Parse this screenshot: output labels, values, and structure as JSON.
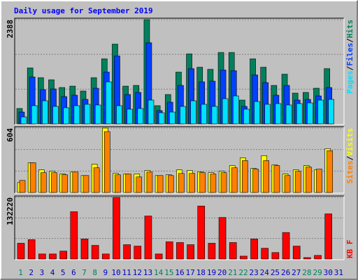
{
  "title": "Daily usage for September 2019",
  "legend_separator": "/",
  "chart_data": [
    {
      "type": "bar",
      "ylim": [
        0,
        2388
      ],
      "yticks": [
        2388
      ],
      "series": [
        {
          "name": "Hits",
          "color": "#00805c",
          "values": [
            353,
            1282,
            1058,
            1010,
            833,
            865,
            753,
            1058,
            1490,
            1827,
            865,
            881,
            2388,
            417,
            673,
            1186,
            1603,
            1298,
            1250,
            1635,
            1635,
            545,
            1490,
            1298,
            881,
            1138,
            705,
            721,
            817,
            1266,
            0
          ]
        },
        {
          "name": "Files",
          "color": "#0040ff",
          "values": [
            272,
            1074,
            785,
            801,
            625,
            657,
            561,
            817,
            1186,
            1555,
            673,
            721,
            1859,
            305,
            497,
            881,
            1266,
            962,
            978,
            1234,
            1218,
            401,
            1122,
            946,
            657,
            881,
            545,
            561,
            641,
            833,
            0
          ]
        },
        {
          "name": "Pages",
          "color": "#00e0ff",
          "values": [
            160,
            417,
            529,
            401,
            369,
            417,
            449,
            433,
            962,
            417,
            337,
            353,
            545,
            256,
            272,
            401,
            529,
            449,
            401,
            577,
            641,
            337,
            513,
            449,
            465,
            433,
            465,
            481,
            545,
            561,
            0
          ]
        }
      ]
    },
    {
      "type": "bar",
      "ylim": [
        0,
        604
      ],
      "yticks": [
        604
      ],
      "series": [
        {
          "name": "Visits",
          "color": "#ffff00",
          "values": [
            93,
            279,
            212,
            199,
            173,
            192,
            159,
            265,
            604,
            179,
            173,
            173,
            206,
            159,
            166,
            212,
            206,
            192,
            186,
            199,
            252,
            325,
            226,
            345,
            259,
            173,
            212,
            252,
            212,
            411,
            0
          ]
        },
        {
          "name": "Sites",
          "color": "#ff8000",
          "values": [
            113,
            279,
            186,
            186,
            166,
            192,
            159,
            232,
            571,
            166,
            173,
            146,
            192,
            159,
            159,
            179,
            179,
            186,
            173,
            186,
            232,
            299,
            219,
            299,
            252,
            159,
            199,
            239,
            219,
            392,
            0
          ]
        }
      ]
    },
    {
      "type": "bar",
      "ylim": [
        0,
        132220
      ],
      "yticks": [
        132220
      ],
      "categories": [
        "1",
        "2",
        "3",
        "4",
        "5",
        "6",
        "7",
        "8",
        "9",
        "10",
        "11",
        "12",
        "13",
        "14",
        "15",
        "16",
        "17",
        "18",
        "19",
        "20",
        "21",
        "22",
        "23",
        "24",
        "25",
        "26",
        "27",
        "28",
        "29",
        "30",
        "31"
      ],
      "category_colors": [
        "#00805c",
        "#0000c0",
        "#0000c0",
        "#0000c0",
        "#0000c0",
        "#0000c0",
        "#00805c",
        "#00805c",
        "#0000c0",
        "#0000c0",
        "#0000c0",
        "#0000c0",
        "#0000c0",
        "#00805c",
        "#00805c",
        "#0000c0",
        "#0000c0",
        "#0000c0",
        "#0000c0",
        "#0000c0",
        "#00805c",
        "#00805c",
        "#0000c0",
        "#0000c0",
        "#0000c0",
        "#0000c0",
        "#0000c0",
        "#00805c",
        "#00805c",
        "#0000c0",
        "#0000c0"
      ],
      "series": [
        {
          "name": "KB F",
          "color": "#ff0000",
          "values": [
            33824,
            41511,
            10762,
            10762,
            16912,
            101471,
            43048,
            29211,
            10762,
            132220,
            30749,
            27674,
            92247,
            10762,
            36898,
            35361,
            30749,
            113771,
            33824,
            89172,
            35361,
            6150,
            43048,
            23062,
            13837,
            56886,
            27674,
            3075,
            7687,
            96859,
            0
          ]
        }
      ]
    }
  ]
}
